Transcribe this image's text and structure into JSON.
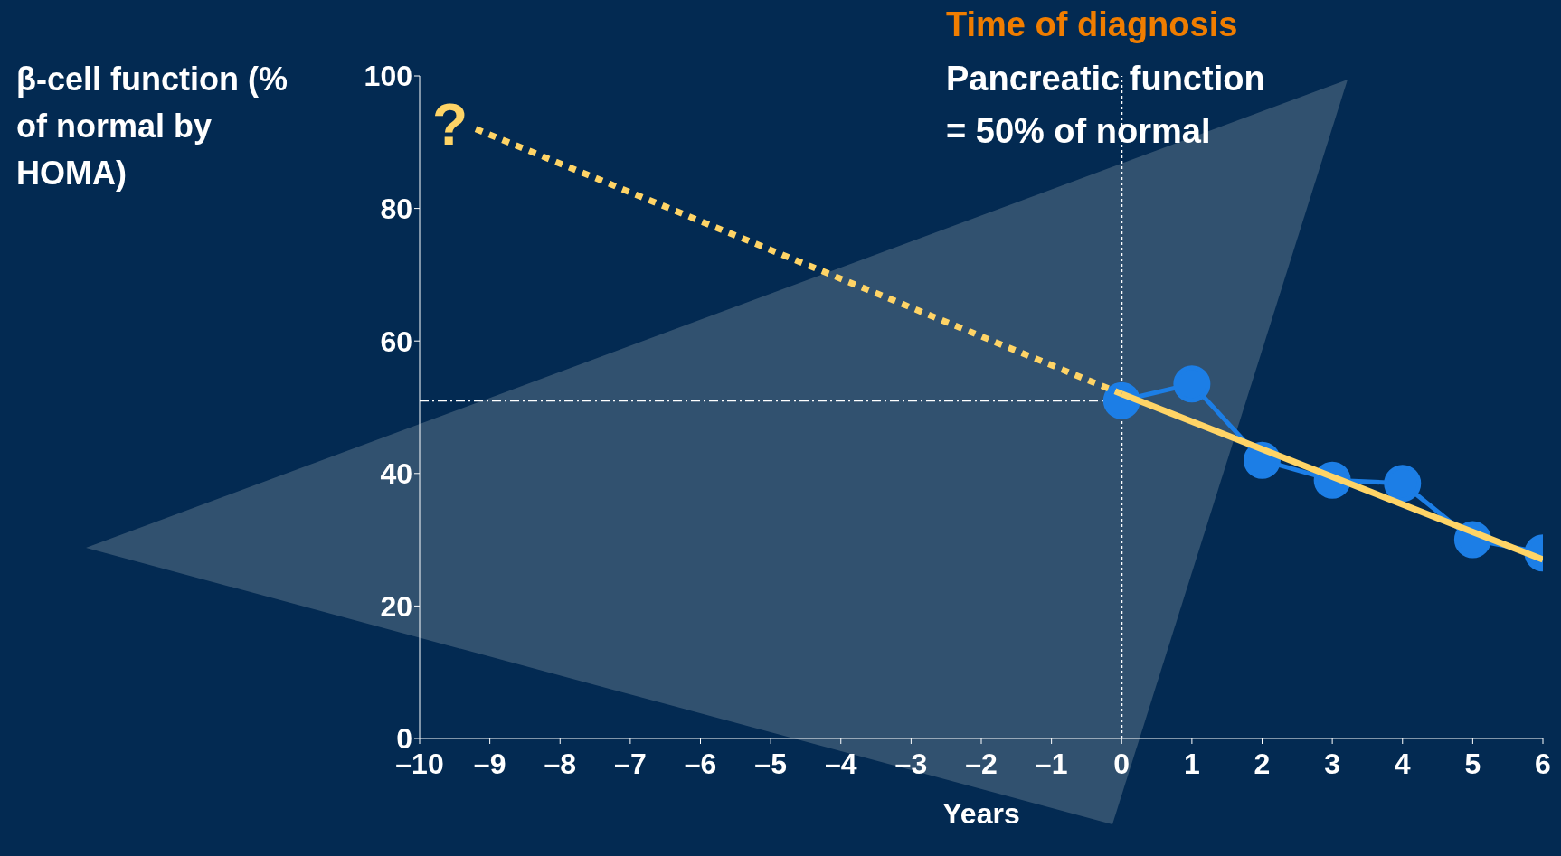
{
  "chart_data": {
    "type": "line",
    "ylabel": "β-cell function (% of normal by HOMA)",
    "xlabel": "Years",
    "xlim": [
      -10,
      6
    ],
    "xticks": [
      {
        "value": -10,
        "label": "–10"
      },
      {
        "value": -9,
        "label": "–9"
      },
      {
        "value": -8,
        "label": "–8"
      },
      {
        "value": -7,
        "label": "–7"
      },
      {
        "value": -6,
        "label": "–6"
      },
      {
        "value": -5,
        "label": "–5"
      },
      {
        "value": -4,
        "label": "–4"
      },
      {
        "value": -3,
        "label": "–3"
      },
      {
        "value": -2,
        "label": "–2"
      },
      {
        "value": -1,
        "label": "–1"
      },
      0,
      1,
      2,
      3,
      4,
      5,
      6
    ],
    "ylim": [
      0,
      100
    ],
    "yticks": [
      0,
      20,
      40,
      60,
      80,
      100
    ],
    "series": [
      {
        "color": "#ffd466",
        "x": [
          -9.2,
          0
        ],
        "values": [
          92,
          52
        ],
        "line_style": "dotted",
        "marker": "none"
      },
      {
        "color": "#ffd466",
        "x": [
          0,
          6
        ],
        "values": [
          52,
          27
        ],
        "line_style": "solid",
        "marker": "none"
      },
      {
        "color": "#1c7ee6",
        "x": [
          0,
          1,
          2,
          3,
          4,
          5,
          6
        ],
        "values": [
          51,
          53.5,
          42,
          39,
          38.5,
          30,
          28
        ],
        "line_style": "solid",
        "marker": "circle"
      }
    ],
    "ref_lines": [
      {
        "axis": "y",
        "value": 51,
        "line_style": "dashdot",
        "color": "#ffffff"
      },
      {
        "axis": "x",
        "value": 0,
        "line_style": "dotted",
        "color": "#ffffff"
      }
    ],
    "annotations": [
      "?",
      "Time of diagnosis",
      "Pancreatic function",
      "= 50% of normal"
    ]
  }
}
